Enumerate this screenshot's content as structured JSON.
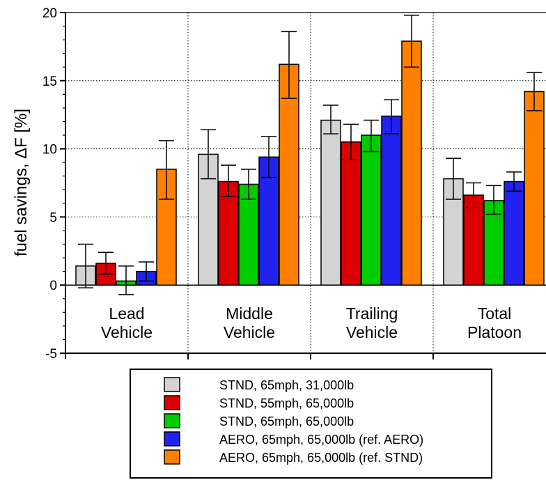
{
  "chart_data": {
    "type": "bar",
    "ylabel": "fuel savings, ΔF [%]",
    "ylim": [
      -5,
      20
    ],
    "yticks": [
      "-5",
      "0",
      "5",
      "10",
      "15",
      "20"
    ],
    "ytick_values": [
      -5,
      0,
      5,
      10,
      15,
      20
    ],
    "grid": true,
    "legend_position": "bottom",
    "categories": [
      {
        "line1": "Lead",
        "line2": "Vehicle"
      },
      {
        "line1": "Middle",
        "line2": "Vehicle"
      },
      {
        "line1": "Trailing",
        "line2": "Vehicle"
      },
      {
        "line1": "Total",
        "line2": "Platoon"
      }
    ],
    "series": [
      {
        "name": "STND, 65mph, 31,000lb",
        "color": "#d3d3d3",
        "values": [
          1.4,
          9.6,
          12.1,
          7.8
        ],
        "errors": [
          [
            -0.2,
            3.0
          ],
          [
            7.8,
            11.4
          ],
          [
            11.1,
            13.2
          ],
          [
            6.3,
            9.3
          ]
        ]
      },
      {
        "name": "STND, 55mph, 65,000lb",
        "color": "#dd0000",
        "values": [
          1.6,
          7.6,
          10.5,
          6.6
        ],
        "errors": [
          [
            0.8,
            2.4
          ],
          [
            6.5,
            8.8
          ],
          [
            9.2,
            11.8
          ],
          [
            5.7,
            7.5
          ]
        ]
      },
      {
        "name": "STND, 65mph, 65,000lb",
        "color": "#00cc00",
        "values": [
          0.3,
          7.4,
          11.0,
          6.2
        ],
        "errors": [
          [
            -0.7,
            1.4
          ],
          [
            6.3,
            8.5
          ],
          [
            9.8,
            12.1
          ],
          [
            5.2,
            7.3
          ]
        ]
      },
      {
        "name": "AERO, 65mph, 65,000lb (ref. AERO)",
        "color": "#2222ee",
        "values": [
          1.0,
          9.4,
          12.4,
          7.6
        ],
        "errors": [
          [
            0.3,
            1.7
          ],
          [
            7.9,
            10.9
          ],
          [
            11.1,
            13.6
          ],
          [
            6.9,
            8.3
          ]
        ]
      },
      {
        "name": "AERO, 65mph, 65,000lb (ref. STND)",
        "color": "#ff8000",
        "values": [
          8.5,
          16.2,
          17.9,
          14.2
        ],
        "errors": [
          [
            6.3,
            10.6
          ],
          [
            13.7,
            18.6
          ],
          [
            16.0,
            19.8
          ],
          [
            12.8,
            15.6
          ]
        ]
      }
    ]
  }
}
